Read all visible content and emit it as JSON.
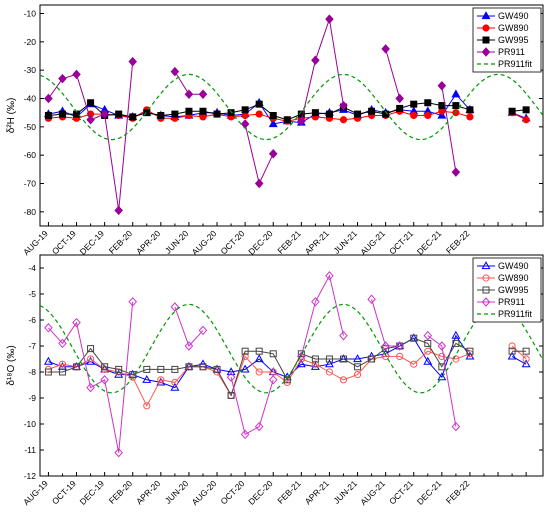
{
  "chart_data": [
    {
      "type": "line",
      "ylabel": "δ²H (‰)",
      "ylim": [
        -85,
        -7
      ],
      "yticks": [
        -80,
        -70,
        -60,
        -50,
        -40,
        -30,
        -20,
        -10
      ],
      "x_tick_labels": [
        "AUG-19",
        "OCT-19",
        "DEC-19",
        "FEB-20",
        "APR-20",
        "JUN-20",
        "AUG-20",
        "OCT-20",
        "DEC-20",
        "FEB-21",
        "APR-21",
        "JUN-21",
        "AUG-21",
        "OCT-21",
        "DEC-21",
        "FEB-22"
      ],
      "legend_position": "top-right",
      "series": [
        {
          "name": "GW490",
          "color": "#0000ff",
          "marker": "triangle",
          "filled": true,
          "x": [
            0,
            1,
            2,
            3,
            4,
            5,
            6,
            7,
            8,
            9,
            10,
            11,
            12,
            13,
            14,
            15,
            16,
            17,
            18,
            19,
            20,
            21,
            22,
            23,
            24,
            25,
            26,
            27,
            28,
            29,
            30,
            31,
            33,
            34
          ],
          "y": [
            -45.5,
            -44.5,
            -46.5,
            -42,
            -44,
            -46,
            -46.5,
            -45,
            -46,
            -46.5,
            -46,
            -45,
            -45,
            -46,
            -45.5,
            -41.5,
            -49,
            -48,
            -48.5,
            -45.5,
            -45,
            -44,
            -46,
            -44,
            -45,
            -44,
            -44.5,
            -44.5,
            -46,
            -38.5,
            -44,
            null,
            -45,
            -47
          ]
        },
        {
          "name": "GW890",
          "color": "#ff0000",
          "marker": "circle",
          "filled": true,
          "x": [
            0,
            1,
            2,
            3,
            4,
            5,
            6,
            7,
            8,
            9,
            10,
            11,
            12,
            13,
            14,
            15,
            16,
            17,
            18,
            19,
            20,
            21,
            22,
            23,
            24,
            25,
            26,
            27,
            28,
            29,
            30,
            31,
            33,
            34
          ],
          "y": [
            -47,
            -46.5,
            -47,
            -45.5,
            -45.5,
            -46,
            -47,
            -44,
            -47,
            -47,
            -46,
            -46.5,
            -45.5,
            -46.5,
            -46,
            -45.5,
            -47,
            -48,
            -47,
            -46.5,
            -47,
            -47.5,
            -47,
            -46,
            -46,
            -44.5,
            -46,
            -46,
            -44.5,
            -45,
            -46.5,
            null,
            -45,
            -47.5
          ]
        },
        {
          "name": "GW995",
          "color": "#000000",
          "marker": "square",
          "filled": true,
          "x": [
            0,
            1,
            2,
            3,
            4,
            5,
            6,
            7,
            8,
            9,
            10,
            11,
            12,
            13,
            14,
            15,
            16,
            17,
            18,
            19,
            20,
            21,
            22,
            23,
            24,
            25,
            26,
            27,
            28,
            29,
            30,
            31,
            33,
            34
          ],
          "y": [
            -46,
            -45.5,
            -45.5,
            -41.5,
            -46,
            -45.5,
            -46.5,
            -45,
            -46,
            -45.5,
            -44.5,
            -44.5,
            -45.5,
            -45,
            -44,
            -42,
            -46,
            -47.5,
            -45.5,
            -45,
            -45.5,
            -43,
            -45.5,
            -44.5,
            -45.5,
            -43.5,
            -42,
            -41.5,
            -42.5,
            -42.5,
            -44,
            null,
            -44.5,
            -44
          ]
        },
        {
          "name": "PR911",
          "color": "#990099",
          "marker": "diamond",
          "filled": true,
          "x": [
            0,
            1,
            2,
            3,
            4,
            5,
            6,
            7,
            8,
            9,
            10,
            11,
            12,
            13,
            14,
            15,
            16,
            17,
            18,
            19,
            20,
            21,
            22,
            23,
            24,
            25,
            26,
            27,
            28,
            29,
            30
          ],
          "y": [
            -40,
            -33,
            -31.5,
            -47.5,
            -45.5,
            -79.5,
            -27,
            null,
            null,
            -30.5,
            -38.5,
            -38.5,
            null,
            null,
            -49,
            -70,
            -59.5,
            null,
            -48,
            -26.5,
            -12,
            -42.5,
            null,
            null,
            -22.5,
            -40,
            null,
            null,
            -35.5,
            -66,
            null
          ]
        },
        {
          "name": "PR911fit",
          "color": "#009900",
          "marker": "none",
          "dashed": true,
          "fit": {
            "mean": -43,
            "amplitude": 11.5,
            "period": 11,
            "peak_x": 10
          }
        }
      ]
    },
    {
      "type": "line",
      "ylabel": "δ¹⁸O (‰)",
      "ylim": [
        -12,
        -3.5
      ],
      "yticks": [
        -12,
        -11,
        -10,
        -9,
        -8,
        -7,
        -6,
        -5,
        -4
      ],
      "x_tick_labels": [
        "AUG-19",
        "OCT-19",
        "DEC-19",
        "FEB-20",
        "APR-20",
        "JUN-20",
        "AUG-20",
        "OCT-20",
        "DEC-20",
        "FEB-21",
        "APR-21",
        "JUN-21",
        "AUG-21",
        "OCT-21",
        "DEC-21",
        "FEB-22"
      ],
      "legend_position": "top-right",
      "series": [
        {
          "name": "GW490",
          "color": "#0000ff",
          "marker": "triangle",
          "filled": false,
          "x": [
            0,
            1,
            2,
            3,
            4,
            5,
            6,
            7,
            8,
            9,
            10,
            11,
            12,
            13,
            14,
            15,
            16,
            17,
            18,
            19,
            20,
            21,
            22,
            23,
            24,
            25,
            26,
            27,
            28,
            29,
            30,
            31,
            33,
            34
          ],
          "y": [
            -7.6,
            -7.8,
            -7.8,
            -7.6,
            -7.9,
            -8.1,
            -8.1,
            -8.3,
            -8.4,
            -8.6,
            -7.8,
            -7.7,
            -7.9,
            -8,
            -7.9,
            -7.5,
            -8,
            -8.2,
            -7.7,
            -7.8,
            -7.7,
            -7.5,
            -7.5,
            -7.4,
            -7.3,
            -7,
            -6.7,
            -7.6,
            -8.2,
            -6.6,
            -7.4,
            null,
            -7.4,
            -7.7
          ]
        },
        {
          "name": "GW890",
          "color": "#ff5555",
          "marker": "circle",
          "filled": false,
          "x": [
            0,
            1,
            2,
            3,
            4,
            5,
            6,
            7,
            8,
            9,
            10,
            11,
            12,
            13,
            14,
            15,
            16,
            17,
            18,
            19,
            20,
            21,
            22,
            23,
            24,
            25,
            26,
            27,
            28,
            29,
            30,
            31,
            33,
            34
          ],
          "y": [
            -7.9,
            -7.7,
            -7.8,
            -7.5,
            -7.9,
            -8,
            -8.2,
            -9.3,
            -8.3,
            -8.4,
            -7.8,
            -7.8,
            -8,
            -8.9,
            -7.4,
            -8,
            -8,
            -8.4,
            -7.5,
            -7.7,
            -8,
            -8.3,
            -8.1,
            -7.5,
            -7.4,
            -7.4,
            -7.7,
            -7.2,
            -7.4,
            -7.5,
            -7.3,
            null,
            -7,
            -7.5
          ]
        },
        {
          "name": "GW995",
          "color": "#444444",
          "marker": "square",
          "filled": false,
          "x": [
            0,
            1,
            2,
            3,
            4,
            5,
            6,
            7,
            8,
            9,
            10,
            11,
            12,
            13,
            14,
            15,
            16,
            17,
            18,
            19,
            20,
            21,
            22,
            23,
            24,
            25,
            26,
            27,
            28,
            29,
            30,
            31,
            33,
            34
          ],
          "y": [
            -8,
            -8,
            -7.8,
            -7.1,
            -7.8,
            -7.9,
            -8.1,
            -7.9,
            -7.9,
            -7.9,
            -7.8,
            -7.8,
            -7.9,
            -8.9,
            -7.2,
            -7.2,
            -7.3,
            -8.3,
            -7.3,
            -7.5,
            -7.5,
            -7.5,
            -7.8,
            -7.5,
            -7.1,
            -7,
            -6.7,
            -6.9,
            -7.8,
            -6.9,
            -7.2,
            null,
            -7.2,
            -7.2
          ]
        },
        {
          "name": "PR911",
          "color": "#cc33cc",
          "marker": "diamond",
          "filled": false,
          "x": [
            0,
            1,
            2,
            3,
            4,
            5,
            6,
            7,
            8,
            9,
            10,
            11,
            12,
            13,
            14,
            15,
            16,
            17,
            18,
            19,
            20,
            21,
            22,
            23,
            24,
            25,
            26,
            27,
            28,
            29,
            30
          ],
          "y": [
            -6.3,
            -6.9,
            -6.1,
            -8.6,
            -8.3,
            -11.1,
            -5.3,
            null,
            null,
            -5.5,
            -7,
            -6.4,
            null,
            -8.2,
            -10.4,
            -10.1,
            -8.3,
            null,
            -7.4,
            -5.3,
            -4.3,
            -6.6,
            null,
            -5.2,
            -7,
            -7,
            null,
            -6.6,
            -7,
            -10.1,
            null
          ]
        },
        {
          "name": "PR911fit",
          "color": "#009900",
          "marker": "none",
          "dashed": true,
          "fit": {
            "mean": -7.1,
            "amplitude": 1.7,
            "period": 11,
            "peak_x": 10
          }
        }
      ]
    }
  ]
}
